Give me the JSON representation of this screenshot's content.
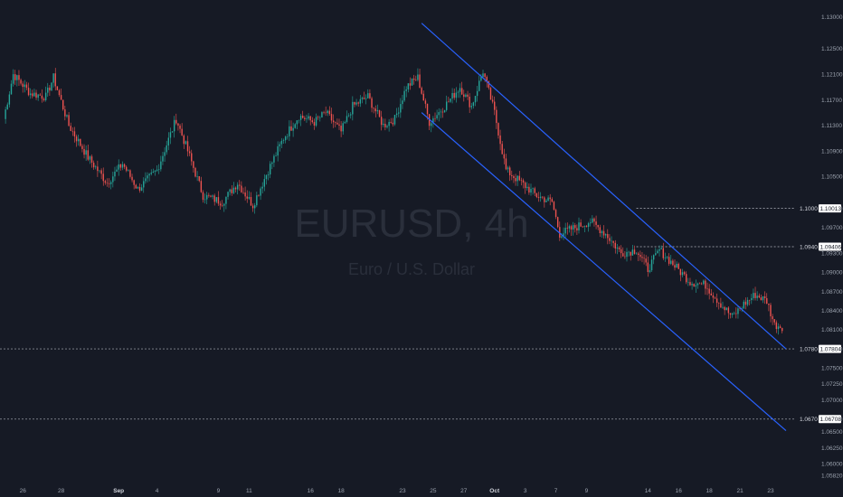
{
  "chart_data": {
    "type": "candlestick",
    "symbol": "EURUSD, 4h",
    "description": "Euro / U.S. Dollar",
    "colors": {
      "background": "#161a25",
      "up": "#26a69a",
      "down": "#ef5350",
      "channel": "#2962ff",
      "level_line": "#b2b5be",
      "axis_text": "#9aa1ad"
    },
    "y_axis": {
      "side": "right",
      "range": [
        1.0582,
        1.1315
      ],
      "ticks": [
        1.13,
        1.125,
        1.121,
        1.117,
        1.113,
        1.109,
        1.105,
        1.1,
        1.097,
        1.093,
        1.09,
        1.087,
        1.084,
        1.081,
        1.078,
        1.075,
        1.0725,
        1.07,
        1.067,
        1.065,
        1.0625,
        1.06,
        1.0582
      ],
      "tick_labels": [
        "1.13000",
        "1.12500",
        "1.12100",
        "1.11700",
        "1.11300",
        "1.10900",
        "1.10500",
        "1.10000",
        "1.09700",
        "1.09300",
        "1.09000",
        "1.08700",
        "1.08400",
        "1.08100",
        "1.07800",
        "1.07500",
        "1.07250",
        "1.07000",
        "1.06700",
        "1.06500",
        "1.06250",
        "1.06000",
        "1.05820"
      ]
    },
    "x_axis": {
      "ticks": [
        {
          "label": "26",
          "bar": 10,
          "bold": false
        },
        {
          "label": "28",
          "bar": 30,
          "bold": false
        },
        {
          "label": "Sep",
          "bar": 60,
          "bold": true
        },
        {
          "label": "4",
          "bar": 80,
          "bold": false
        },
        {
          "label": "9",
          "bar": 112,
          "bold": false
        },
        {
          "label": "11",
          "bar": 128,
          "bold": false
        },
        {
          "label": "16",
          "bar": 160,
          "bold": false
        },
        {
          "label": "18",
          "bar": 176,
          "bold": false
        },
        {
          "label": "23",
          "bar": 208,
          "bold": false
        },
        {
          "label": "25",
          "bar": 224,
          "bold": false
        },
        {
          "label": "27",
          "bar": 240,
          "bold": false
        },
        {
          "label": "Oct",
          "bar": 256,
          "bold": true
        },
        {
          "label": "3",
          "bar": 272,
          "bold": false
        },
        {
          "label": "7",
          "bar": 288,
          "bold": false
        },
        {
          "label": "9",
          "bar": 304,
          "bold": false
        },
        {
          "label": "14",
          "bar": 336,
          "bold": false
        },
        {
          "label": "16",
          "bar": 352,
          "bold": false
        },
        {
          "label": "18",
          "bar": 368,
          "bold": false
        },
        {
          "label": "21",
          "bar": 384,
          "bold": false
        },
        {
          "label": "23",
          "bar": 400,
          "bold": false
        }
      ]
    },
    "levels": [
      {
        "price": 1.1,
        "label": "1.1000",
        "tag": "1.10013"
      },
      {
        "price": 1.094,
        "label": "1.0940",
        "tag": "1.09406"
      },
      {
        "price": 1.078,
        "label": "1.0780",
        "tag": "1.07804"
      },
      {
        "price": 1.067,
        "label": "1.0670",
        "tag": "1.06708"
      }
    ],
    "channel": {
      "upper": [
        {
          "bar": 218,
          "price": 1.129
        },
        {
          "bar": 408,
          "price": 1.078
        }
      ],
      "lower": [
        {
          "bar": 218,
          "price": 1.115
        },
        {
          "bar": 408,
          "price": 1.0652
        }
      ]
    },
    "anchors": [
      {
        "bar": 0,
        "price": 1.114
      },
      {
        "bar": 5,
        "price": 1.121
      },
      {
        "bar": 14,
        "price": 1.118
      },
      {
        "bar": 22,
        "price": 1.1175
      },
      {
        "bar": 26,
        "price": 1.1205
      },
      {
        "bar": 34,
        "price": 1.113
      },
      {
        "bar": 44,
        "price": 1.108
      },
      {
        "bar": 54,
        "price": 1.104
      },
      {
        "bar": 62,
        "price": 1.107
      },
      {
        "bar": 70,
        "price": 1.103
      },
      {
        "bar": 80,
        "price": 1.106
      },
      {
        "bar": 90,
        "price": 1.114
      },
      {
        "bar": 96,
        "price": 1.109
      },
      {
        "bar": 104,
        "price": 1.102
      },
      {
        "bar": 114,
        "price": 1.101
      },
      {
        "bar": 122,
        "price": 1.104
      },
      {
        "bar": 130,
        "price": 1.1005
      },
      {
        "bar": 138,
        "price": 1.106
      },
      {
        "bar": 146,
        "price": 1.111
      },
      {
        "bar": 154,
        "price": 1.1145
      },
      {
        "bar": 162,
        "price": 1.1135
      },
      {
        "bar": 168,
        "price": 1.115
      },
      {
        "bar": 176,
        "price": 1.112
      },
      {
        "bar": 182,
        "price": 1.116
      },
      {
        "bar": 190,
        "price": 1.1175
      },
      {
        "bar": 198,
        "price": 1.113
      },
      {
        "bar": 204,
        "price": 1.114
      },
      {
        "bar": 210,
        "price": 1.119
      },
      {
        "bar": 216,
        "price": 1.1205
      },
      {
        "bar": 222,
        "price": 1.1135
      },
      {
        "bar": 230,
        "price": 1.116
      },
      {
        "bar": 238,
        "price": 1.119
      },
      {
        "bar": 244,
        "price": 1.116
      },
      {
        "bar": 250,
        "price": 1.1215
      },
      {
        "bar": 256,
        "price": 1.115
      },
      {
        "bar": 262,
        "price": 1.106
      },
      {
        "bar": 270,
        "price": 1.104
      },
      {
        "bar": 278,
        "price": 1.102
      },
      {
        "bar": 286,
        "price": 1.101
      },
      {
        "bar": 290,
        "price": 1.096
      },
      {
        "bar": 298,
        "price": 1.097
      },
      {
        "bar": 306,
        "price": 1.098
      },
      {
        "bar": 314,
        "price": 1.096
      },
      {
        "bar": 322,
        "price": 1.093
      },
      {
        "bar": 330,
        "price": 1.0935
      },
      {
        "bar": 336,
        "price": 1.0905
      },
      {
        "bar": 342,
        "price": 1.0935
      },
      {
        "bar": 350,
        "price": 1.091
      },
      {
        "bar": 358,
        "price": 1.0885
      },
      {
        "bar": 366,
        "price": 1.088
      },
      {
        "bar": 374,
        "price": 1.085
      },
      {
        "bar": 380,
        "price": 1.083
      },
      {
        "bar": 386,
        "price": 1.085
      },
      {
        "bar": 392,
        "price": 1.0865
      },
      {
        "bar": 398,
        "price": 1.0855
      },
      {
        "bar": 402,
        "price": 1.0818
      },
      {
        "bar": 406,
        "price": 1.0815
      }
    ]
  }
}
